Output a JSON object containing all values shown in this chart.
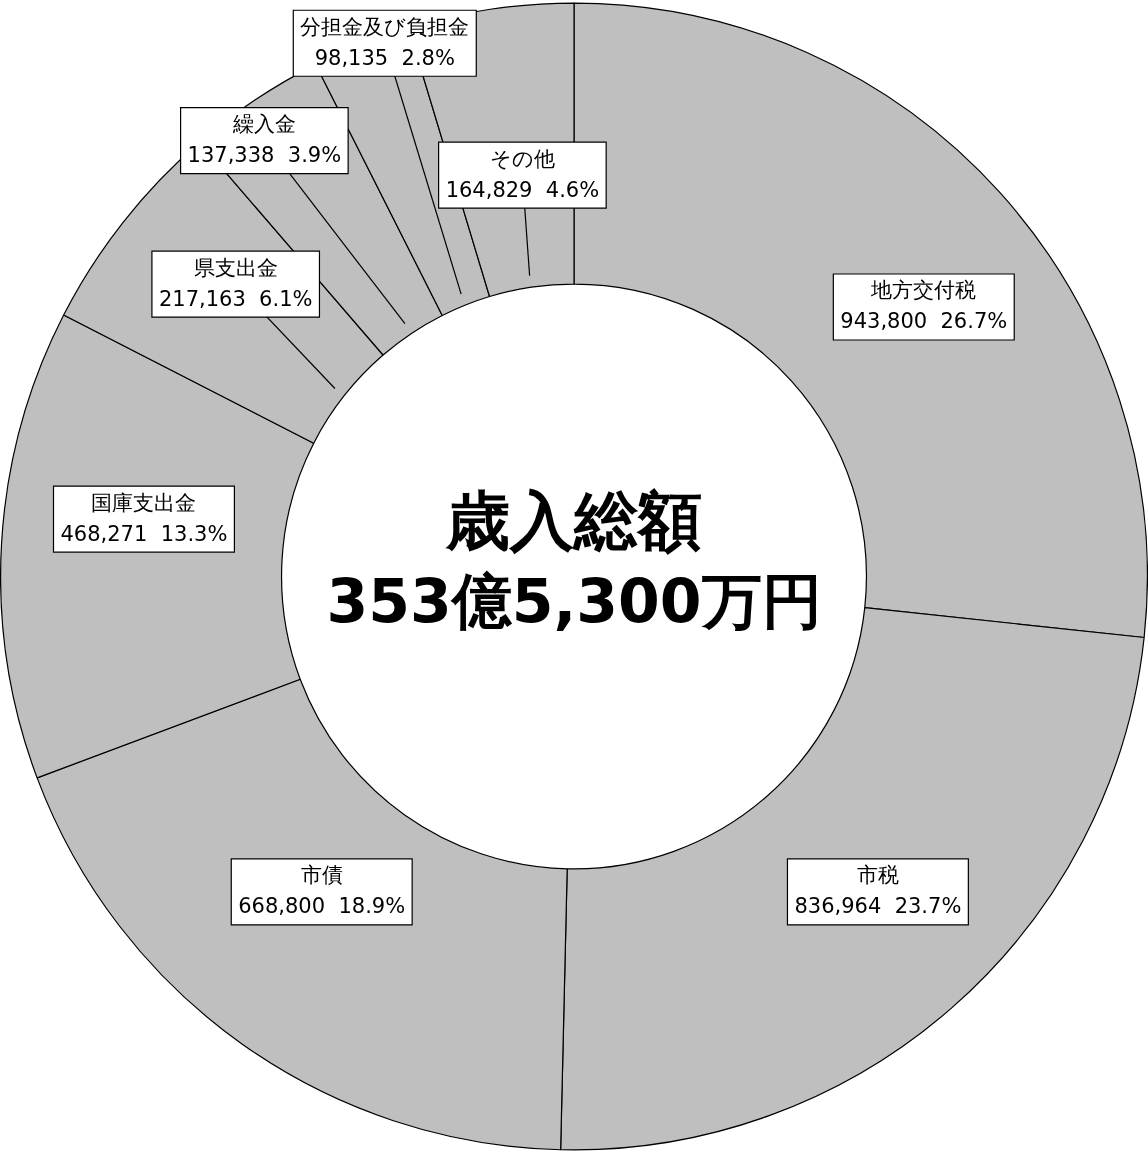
{
  "chart_data": {
    "type": "donut",
    "title": "歳入総額",
    "subtitle": "353億5,300万円",
    "categories": [
      "地方交付税",
      "市税",
      "市債",
      "国庫支出金",
      "県支出金",
      "繰入金",
      "分担金及び負担金",
      "その他"
    ],
    "values": [
      943800,
      836964,
      668800,
      468271,
      217163,
      137338,
      98135,
      164829
    ],
    "value_labels": [
      "943,800  26.7%",
      "836,964  23.7%",
      "668,800  18.9%",
      "468,271  13.3%",
      "217,163  6.1%",
      "137,338  3.9%",
      "98,135  2.8%",
      "164,829  4.6%"
    ],
    "colors": [
      "#bfbfbf",
      "#bfbfbf",
      "#bfbfbf",
      "#bfbfbf",
      "#bfbfbf",
      "#bfbfbf",
      "#bfbfbf",
      "#bfbfbf"
    ],
    "legend": false
  }
}
